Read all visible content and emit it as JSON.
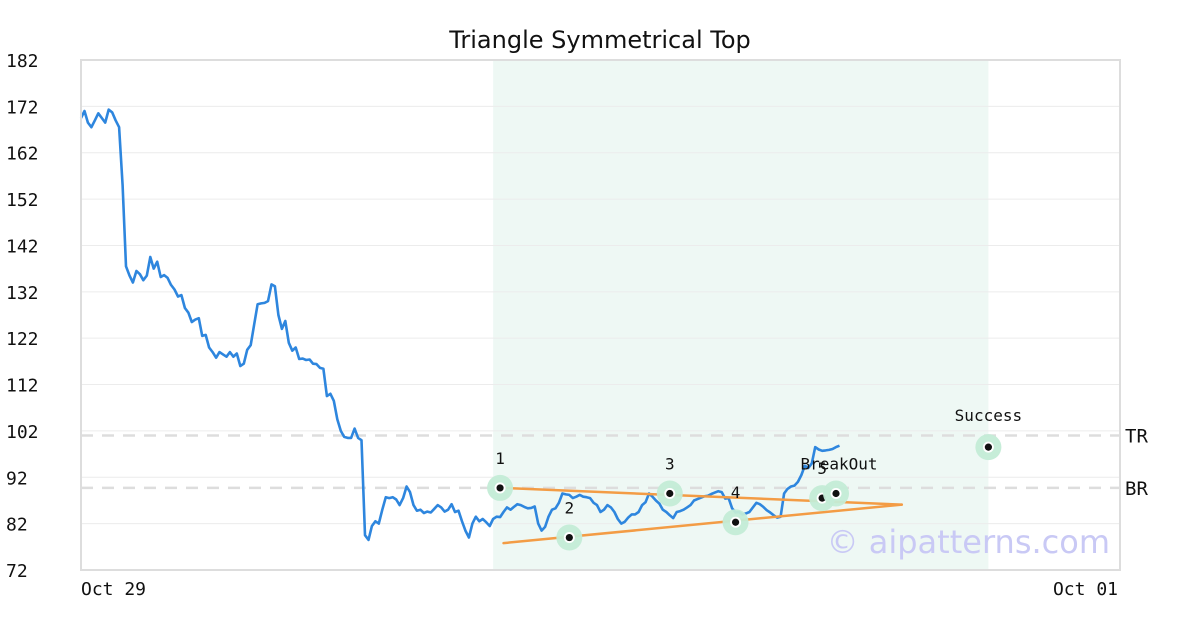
{
  "chart_data": {
    "type": "line",
    "title": "Triangle Symmetrical Top",
    "xlabel": "",
    "ylabel": "",
    "ylim": [
      72,
      182
    ],
    "yticks": [
      182,
      172,
      162,
      152,
      142,
      132,
      122,
      112,
      102,
      92,
      82,
      72
    ],
    "x_tick_labels": [
      "Oct 29",
      "Oct 01"
    ],
    "x_range": [
      0,
      300
    ],
    "grid": "horizontal",
    "series": [
      {
        "values": [
          169.5,
          171,
          168.5,
          167.5,
          169,
          170.5,
          169.5,
          168.5,
          171.3,
          170.7,
          169,
          167.5,
          155,
          137.5,
          135.5,
          134,
          136.5,
          135.8,
          134.5,
          135.5,
          139.5,
          137,
          138.5,
          135.2,
          135.6,
          135,
          133.5,
          132.5,
          131,
          131.3,
          128.5,
          127.5,
          125.5,
          126,
          126.3,
          122.5,
          122.7,
          120,
          119,
          117.8,
          119,
          118.5,
          118,
          119,
          118,
          118.7,
          116,
          116.5,
          119.5,
          120.5,
          125,
          129.3,
          129.5,
          129.6,
          130,
          133.6,
          133.2,
          127,
          124,
          125.7,
          121,
          119.3,
          120,
          117.5,
          117.6,
          117.3,
          117.4,
          116.5,
          116.4,
          115.6,
          115.4,
          109.5,
          110,
          108.5,
          104.5,
          102,
          100.7,
          100.5,
          100.5,
          102.5,
          100.5,
          100,
          79.5,
          78.5,
          81.5,
          82.5,
          82,
          85,
          87.7,
          87.5,
          87.7,
          87.2,
          86,
          87.5,
          90,
          88.8,
          86,
          84.8,
          85,
          84.3,
          84.6,
          84.4,
          85.2,
          86,
          85.5,
          84.6,
          85,
          86.2,
          84.5,
          84.8,
          82.5,
          80.5,
          79,
          82,
          83.5,
          82.5,
          83,
          82.3,
          81.5,
          83,
          83.5,
          83.4,
          84.5,
          85.5,
          85,
          85.6,
          86.2,
          86,
          85.6,
          85.3,
          85.4,
          85.7,
          82,
          80.5,
          81.3,
          83.5,
          85,
          85.3,
          86.5,
          88.5,
          88.3,
          88.2,
          87.5,
          87.8,
          88.2,
          87.8,
          87.7,
          87.5,
          86.5,
          86,
          84.5,
          85,
          86,
          85.5,
          84.5,
          83,
          82,
          82.4,
          83.3,
          84,
          84,
          84.5,
          86,
          86.6,
          88.5,
          87.8,
          87,
          86.3,
          85,
          84.5,
          83.8,
          83.2,
          84.5,
          84.7,
          85,
          85.5,
          86,
          87,
          87.3,
          87.6,
          87.9,
          88,
          88.4,
          88.7,
          89,
          88.8,
          87.4,
          87.5,
          85.3,
          84.4,
          84.5,
          84,
          84.2,
          84.5,
          85.5,
          86.5,
          86.2,
          85.6,
          84.9,
          84.4,
          83.8,
          83.3,
          83.5,
          88.5,
          89.5,
          90,
          90.2,
          91,
          92.5,
          94.5,
          94,
          95,
          98.5,
          98,
          97.7,
          97.8,
          97.9,
          98.1,
          98.5,
          98.8
        ],
        "color": "#2e86de"
      }
    ],
    "highlight_region": {
      "x_start": 119,
      "x_end": 262
    },
    "levels": [
      {
        "label": "TR",
        "y": 101
      },
      {
        "label": "BR",
        "y": 89.7
      }
    ],
    "trendlines": [
      {
        "points": [
          [
            122,
            89.7
          ],
          [
            237,
            86.1
          ]
        ]
      },
      {
        "points": [
          [
            122,
            77.8
          ],
          [
            237,
            86.1
          ]
        ]
      }
    ],
    "pattern_points": [
      {
        "label": "1",
        "x": 121,
        "y": 89.7
      },
      {
        "label": "2",
        "x": 141,
        "y": 79
      },
      {
        "label": "3",
        "x": 170,
        "y": 88.5
      },
      {
        "label": "4",
        "x": 189,
        "y": 82.3
      },
      {
        "label": "5",
        "x": 214,
        "y": 87.5
      },
      {
        "label": "BreakOut",
        "x": 218,
        "y": 88.5
      },
      {
        "label": "Success",
        "x": 262,
        "y": 98.5
      }
    ],
    "colors": {
      "line": "#2e86de",
      "trendline": "#f39c45",
      "highlight": "#eef8f4",
      "marker_halo": "#c3ecd6",
      "level_line": "#dddddd"
    },
    "watermark": "© aipatterns.com"
  }
}
